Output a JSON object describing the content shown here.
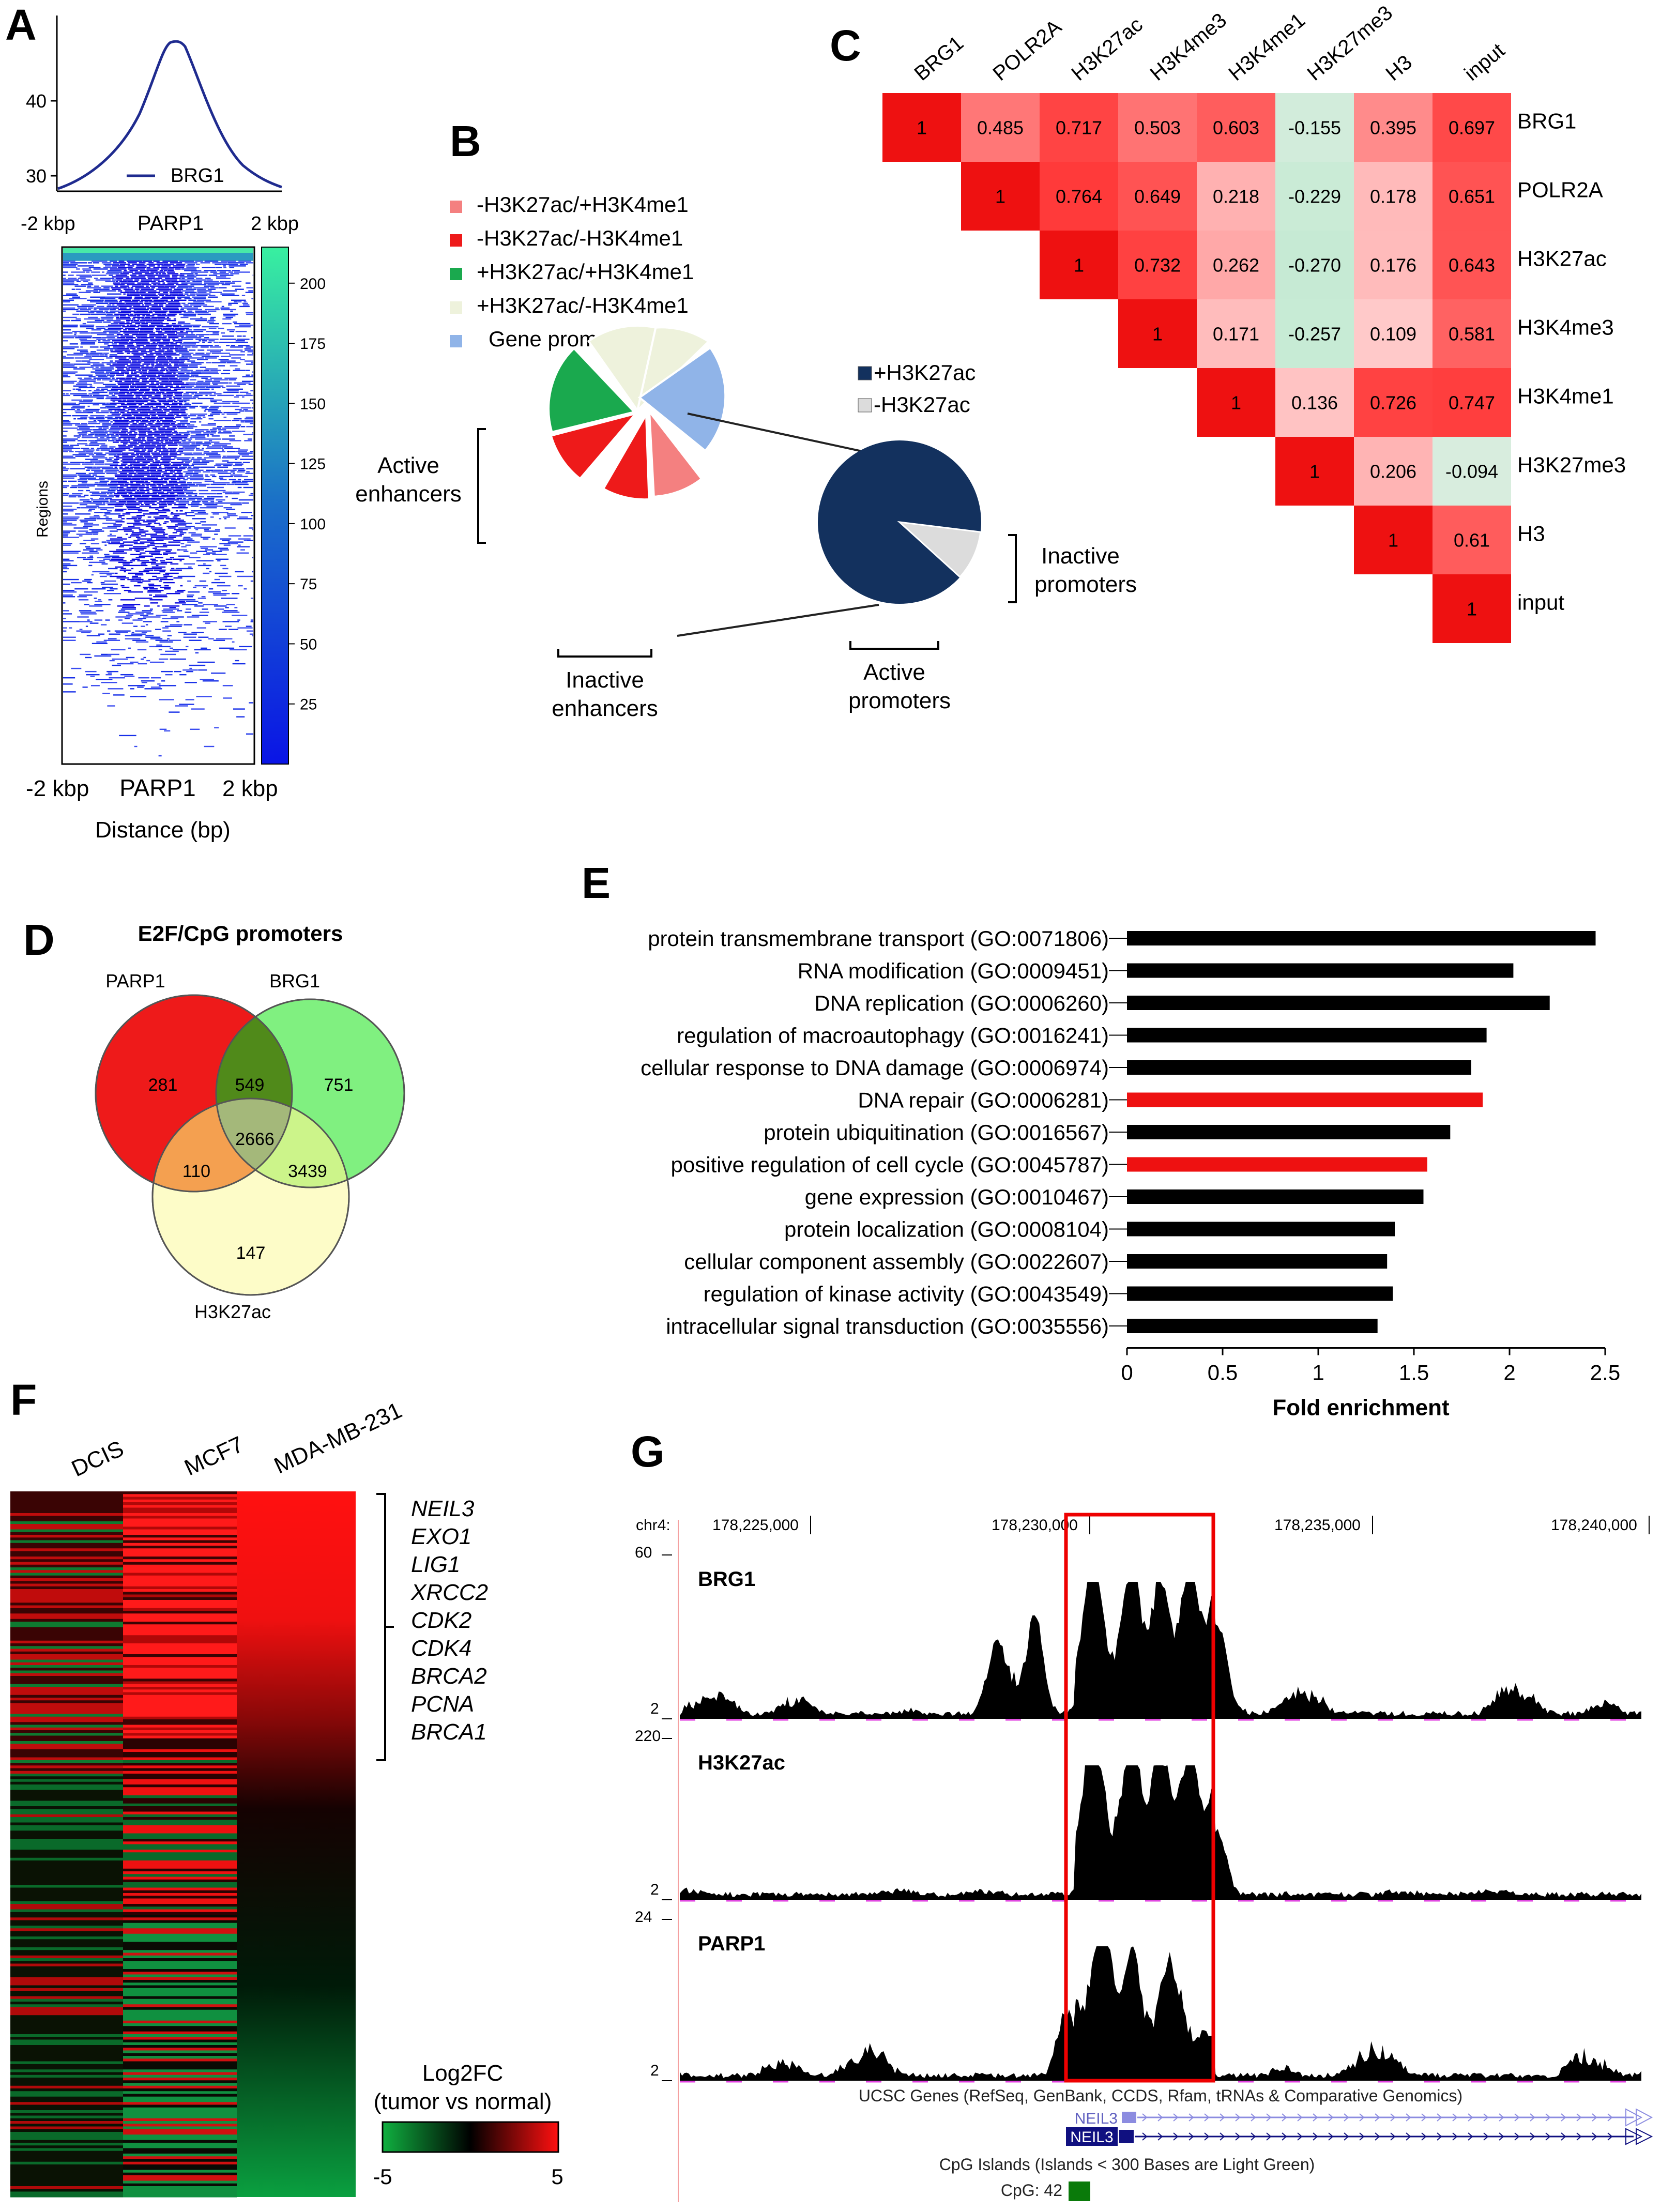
{
  "panel_labels": {
    "a": "A",
    "b": "B",
    "c": "C",
    "d": "D",
    "e": "E",
    "f": "F",
    "g": "G"
  },
  "panelA": {
    "profile": {
      "legend": "BRG1",
      "yticks": [
        "40",
        "30"
      ],
      "x_left": "-2 kbp",
      "x_mid": "PARP1",
      "x_right": "2 kbp"
    },
    "heatmap": {
      "ylabel": "Regions",
      "x_left": "-2 kbp",
      "x_mid": "PARP1",
      "x_right": "2 kbp",
      "xlabel": "Distance (bp)"
    },
    "colorbar": {
      "ticks": [
        "200",
        "175",
        "150",
        "125",
        "100",
        "75",
        "50",
        "25"
      ]
    }
  },
  "panelB": {
    "legend": [
      {
        "label": "-H3K27ac/+H3K4me1",
        "color": "#f48080"
      },
      {
        "label": "-H3K27ac/-H3K4me1",
        "color": "#ee1a1a"
      },
      {
        "label": "+H3K27ac/+H3K4me1",
        "color": "#1aa94e"
      },
      {
        "label": "+H3K27ac/-H3K4me1",
        "color": "#eef2dc"
      },
      {
        "label": "Gene promoters",
        "color": "#90b4e8"
      }
    ],
    "legend2": [
      {
        "label": "+H3K27ac",
        "color": "#13315e"
      },
      {
        "label": "-H3K27ac",
        "color": "#dcdcdc"
      }
    ],
    "active_enh_1": "Active",
    "active_enh_2": "enhancers",
    "inactive_enh_1": "Inactive",
    "inactive_enh_2": "enhancers",
    "inactive_prom_1": "Inactive",
    "inactive_prom_2": "promoters",
    "active_prom_1": "Active",
    "active_prom_2": "promoters"
  },
  "panelC": {
    "labels": [
      "BRG1",
      "POLR2A",
      "H3K27ac",
      "H3K4me3",
      "H3K4me1",
      "H3K27me3",
      "H3",
      "input"
    ],
    "matrix": [
      [
        "1",
        "0.485",
        "0.717",
        "0.503",
        "0.603",
        "-0.155",
        "0.395",
        "0.697"
      ],
      [
        "1",
        "0.764",
        "0.649",
        "0.218",
        "-0.229",
        "0.178",
        "0.651"
      ],
      [
        "1",
        "0.732",
        "0.262",
        "-0.270",
        "0.176",
        "0.643"
      ],
      [
        "1",
        "0.171",
        "-0.257",
        "0.109",
        "0.581"
      ],
      [
        "1",
        "0.136",
        "0.726",
        "0.747"
      ],
      [
        "1",
        "0.206",
        "-0.094"
      ],
      [
        "1",
        "0.61"
      ],
      [
        "1"
      ]
    ]
  },
  "panelD": {
    "title": "E2F/CpG promoters",
    "set_a": "PARP1",
    "set_b": "BRG1",
    "set_c": "H3K27ac",
    "a_only": "281",
    "ab": "549",
    "b_only": "751",
    "abc": "2666",
    "ac": "110",
    "bc": "3439",
    "c_only": "147"
  },
  "chart_data": {
    "type": "bar",
    "orientation": "horizontal",
    "categories": [
      "protein transmembrane transport (GO:0071806)",
      "RNA modification (GO:0009451)",
      "DNA replication (GO:0006260)",
      "regulation of macroautophagy (GO:0016241)",
      "cellular response to DNA damage (GO:0006974)",
      "DNA repair (GO:0006281)",
      "protein ubiquitination (GO:0016567)",
      "positive regulation of cell cycle (GO:0045787)",
      "gene expression (GO:0010467)",
      "protein localization (GO:0008104)",
      "cellular component assembly (GO:0022607)",
      "regulation of kinase activity (GO:0043549)",
      "intracellular signal transduction (GO:0035556)"
    ],
    "values": [
      2.45,
      2.02,
      2.21,
      1.88,
      1.8,
      1.86,
      1.69,
      1.57,
      1.55,
      1.4,
      1.36,
      1.39,
      1.31
    ],
    "highlight": [
      false,
      false,
      false,
      false,
      false,
      true,
      false,
      true,
      false,
      false,
      false,
      false,
      false
    ],
    "xlabel": "Fold enrichment",
    "xlim": [
      0,
      2.5
    ],
    "xticks": [
      "0",
      "0.5",
      "1",
      "1.5",
      "2",
      "2.5"
    ]
  },
  "panelF": {
    "columns": [
      "DCIS",
      "MCF7",
      "MDA-MB-231"
    ],
    "genes": [
      "NEIL3",
      "EXO1",
      "LIG1",
      "XRCC2",
      "CDK2",
      "CDK4",
      "BRCA2",
      "PCNA",
      "BRCA1"
    ],
    "cb_title1": "Log2FC",
    "cb_title2": "(tumor vs normal)",
    "cb_min": "-5",
    "cb_max": "5"
  },
  "panelG": {
    "chrom": "chr4:",
    "coords": [
      "178,225,000",
      "178,230,000",
      "178,235,000",
      "178,240,000"
    ],
    "tracks": [
      {
        "name": "BRG1",
        "max": "60",
        "min": "2"
      },
      {
        "name": "H3K27ac",
        "max": "220",
        "min": "2"
      },
      {
        "name": "PARP1",
        "max": "24",
        "min": "2"
      }
    ],
    "ucsc": "UCSC Genes (RefSeq, GenBank, CCDS, Rfam, tRNAs & Comparative Genomics)",
    "gene1": "NEIL3",
    "gene2": "NEIL3",
    "cpg_title": "CpG Islands (Islands < 300 Bases are Light Green)",
    "cpg_label": "CpG: 42"
  }
}
